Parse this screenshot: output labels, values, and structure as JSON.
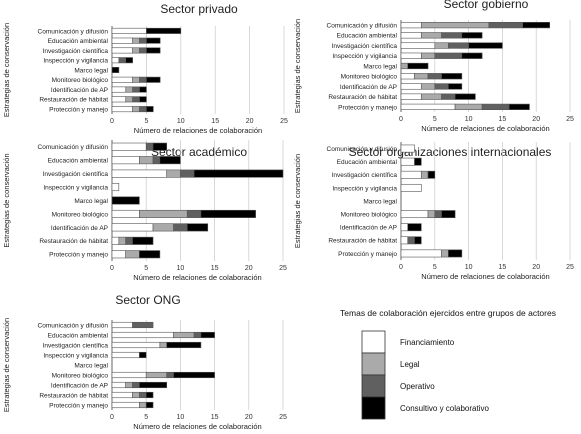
{
  "figure": {
    "segment_names": [
      "Financiamiento",
      "Legal",
      "Operativo",
      "Consultivo y colaborativo"
    ],
    "segment_colors": [
      "#ffffff",
      "#aaaaaa",
      "#606060",
      "#000000"
    ],
    "legend": {
      "title": "Temas de colaboración ejercidos entre grupos de actores",
      "placement": "bottom-right"
    }
  },
  "chart_data": [
    {
      "type": "bar",
      "orientation": "horizontal",
      "stacked": true,
      "title": "Sector privado",
      "xlabel": "Número de relaciones de colaboración",
      "ylabel": "Estrategias de conservación",
      "xlim": [
        0,
        25
      ],
      "xticks": [
        0,
        5,
        10,
        15,
        20,
        25
      ],
      "grid": true,
      "categories": [
        "Comunicación y difusión",
        "Educación ambiental",
        "Investigación científica",
        "Inspección y vigilancia",
        "Marco legal",
        "Monitoreo biológico",
        "Identificación de AP",
        "Restauración de hábitat",
        "Protección y manejo"
      ],
      "series": [
        {
          "name": "Financiamiento",
          "values": [
            5,
            3,
            3,
            1,
            0,
            3,
            2,
            2,
            3
          ]
        },
        {
          "name": "Legal",
          "values": [
            0,
            1,
            1,
            0,
            0,
            1,
            1,
            1,
            1
          ]
        },
        {
          "name": "Operativo",
          "values": [
            0,
            1,
            1,
            1,
            0,
            1,
            1,
            1,
            1
          ]
        },
        {
          "name": "Consultivo y colaborativo",
          "values": [
            5,
            2,
            2,
            1,
            1,
            2,
            1,
            1,
            1
          ]
        }
      ]
    },
    {
      "type": "bar",
      "orientation": "horizontal",
      "stacked": true,
      "title": "Sector gobierno",
      "xlabel": "Número de relaciones de colaboración",
      "ylabel": "Estrategias de conservación",
      "xlim": [
        0,
        25
      ],
      "xticks": [
        0,
        5,
        10,
        15,
        20,
        25
      ],
      "grid": true,
      "categories": [
        "Comunicación y difusión",
        "Educación ambiental",
        "Investigación científica",
        "Inspección y vigilancia",
        "Marco legal",
        "Monitoreo biológico",
        "Identificación de AP",
        "Restauración de hábitat",
        "Protección y manejo"
      ],
      "series": [
        {
          "name": "Financiamiento",
          "values": [
            3,
            3,
            5,
            3,
            0,
            2,
            3,
            3,
            8
          ]
        },
        {
          "name": "Legal",
          "values": [
            10,
            3,
            2,
            2,
            1,
            2,
            2,
            3,
            4
          ]
        },
        {
          "name": "Operativo",
          "values": [
            5,
            3,
            3,
            4,
            0,
            2,
            2,
            2,
            4
          ]
        },
        {
          "name": "Consultivo y colaborativo",
          "values": [
            4,
            3,
            5,
            3,
            3,
            3,
            2,
            3,
            3
          ]
        }
      ]
    },
    {
      "type": "bar",
      "orientation": "horizontal",
      "stacked": true,
      "title": "Sector académico",
      "xlabel": "Número de relaciones de colaboración",
      "ylabel": "Estrategias de conservación",
      "xlim": [
        0,
        25
      ],
      "xticks": [
        0,
        5,
        10,
        15,
        20,
        25
      ],
      "grid": true,
      "categories": [
        "Comunicación y difusión",
        "Educación ambiental",
        "Investigación científica",
        "Inspección y vigilancia",
        "Marco legal",
        "Monitoreo biológico",
        "Identificación de AP",
        "Restauración de hábitat",
        "Protección y manejo"
      ],
      "series": [
        {
          "name": "Financiamiento",
          "values": [
            5,
            4,
            8,
            1,
            0,
            4,
            6,
            1,
            2
          ]
        },
        {
          "name": "Legal",
          "values": [
            0,
            2,
            2,
            0,
            0,
            7,
            3,
            1,
            2
          ]
        },
        {
          "name": "Operativo",
          "values": [
            1,
            1,
            2,
            0,
            0,
            2,
            2,
            1,
            0
          ]
        },
        {
          "name": "Consultivo y colaborativo",
          "values": [
            2,
            3,
            13,
            0,
            4,
            8,
            3,
            3,
            3
          ]
        }
      ]
    },
    {
      "type": "bar",
      "orientation": "horizontal",
      "stacked": true,
      "title": "Sector organizaciones internacionales",
      "xlabel": "Número de relaciones de colaboración",
      "ylabel": "Estrategias de conservación",
      "xlim": [
        0,
        25
      ],
      "xticks": [
        0,
        5,
        10,
        15,
        20,
        25
      ],
      "grid": true,
      "categories": [
        "Comunicación y difusión",
        "Educación ambiental",
        "Investigación científica",
        "Inspección y vigilancia",
        "Marco legal",
        "Monitoreo biológico",
        "Identificación de AP",
        "Restauración de hábitat",
        "Protección y manejo"
      ],
      "series": [
        {
          "name": "Financiamiento",
          "values": [
            2,
            2,
            3,
            3,
            0,
            4,
            1,
            1,
            6
          ]
        },
        {
          "name": "Legal",
          "values": [
            0,
            0,
            1,
            0,
            0,
            1,
            0,
            0,
            1
          ]
        },
        {
          "name": "Operativo",
          "values": [
            0,
            0,
            0,
            0,
            0,
            1,
            0,
            1,
            0
          ]
        },
        {
          "name": "Consultivo y colaborativo",
          "values": [
            0,
            1,
            1,
            0,
            0,
            2,
            2,
            1,
            2
          ]
        }
      ]
    },
    {
      "type": "bar",
      "orientation": "horizontal",
      "stacked": true,
      "title": "Sector ONG",
      "xlabel": "Número de relaciones de colaboración",
      "ylabel": "Estrategias de conservación",
      "xlim": [
        0,
        25
      ],
      "xticks": [
        0,
        5,
        10,
        15,
        20,
        25
      ],
      "grid": true,
      "categories": [
        "Comunicación y difusión",
        "Educación ambiental",
        "Investigación científica",
        "Inspección y vigilancia",
        "Marco legal",
        "Monitoreo biológico",
        "Identificación de AP",
        "Restauración de hábitat",
        "Protección y manejo"
      ],
      "series": [
        {
          "name": "Financiamiento",
          "values": [
            3,
            9,
            7,
            4,
            0,
            5,
            2,
            3,
            4
          ]
        },
        {
          "name": "Legal",
          "values": [
            0,
            3,
            1,
            0,
            0,
            3,
            1,
            1,
            1
          ]
        },
        {
          "name": "Operativo",
          "values": [
            3,
            1,
            0,
            0,
            0,
            1,
            1,
            1,
            0
          ]
        },
        {
          "name": "Consultivo y colaborativo",
          "values": [
            0,
            2,
            5,
            1,
            0,
            6,
            4,
            1,
            1
          ]
        }
      ]
    }
  ]
}
